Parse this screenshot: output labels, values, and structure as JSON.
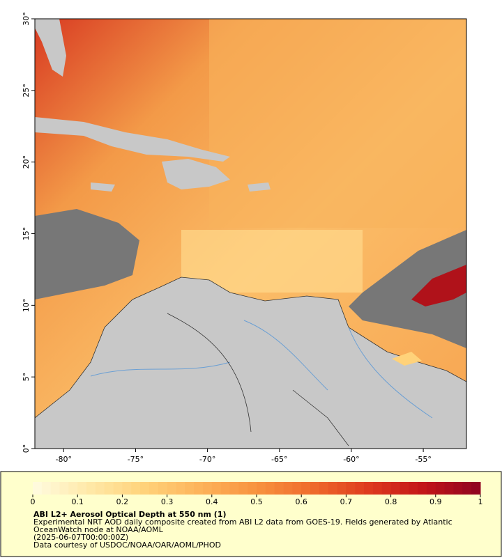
{
  "map": {
    "xaxis": {
      "lim": [
        -82,
        -52
      ],
      "ticks": [
        {
          "value": -80,
          "label": "-80°"
        },
        {
          "value": -75,
          "label": "-75°"
        },
        {
          "value": -70,
          "label": "-70°"
        },
        {
          "value": -65,
          "label": "-65°"
        },
        {
          "value": -60,
          "label": "-60°"
        },
        {
          "value": -55,
          "label": "-55°"
        }
      ]
    },
    "yaxis": {
      "lim": [
        0,
        30
      ],
      "ticks": [
        {
          "value": 0,
          "label": "0°"
        },
        {
          "value": 5,
          "label": "5°"
        },
        {
          "value": 10,
          "label": "10°"
        },
        {
          "value": 15,
          "label": "15°"
        },
        {
          "value": 20,
          "label": "20°"
        },
        {
          "value": 25,
          "label": "25°"
        },
        {
          "value": 30,
          "label": "30°"
        }
      ]
    }
  },
  "colorbar": {
    "lim": [
      0,
      1
    ],
    "ticks": [
      0,
      0.1,
      0.2,
      0.3,
      0.4,
      0.5,
      0.6,
      0.7,
      0.8,
      0.9,
      1
    ],
    "colors": [
      "#fffbe0",
      "#ffe9a8",
      "#ffd27a",
      "#fdb35a",
      "#f8923f",
      "#ef6b2c",
      "#de3a1e",
      "#c21418",
      "#8e0420"
    ]
  },
  "caption": {
    "title": "ABI L2+ Aerosol Optical Depth at 550 nm (1)",
    "lines": [
      "Experimental NRT AOD daily composite created from ABI L2 data from GOES-19. Fields generated by Atlantic",
      "OceanWatch node at NOAA/AOML",
      "(2025-06-07T00:00:00Z)",
      "Data courtesy of USDOC/NOAA/OAR/AOML/PHOD"
    ]
  }
}
